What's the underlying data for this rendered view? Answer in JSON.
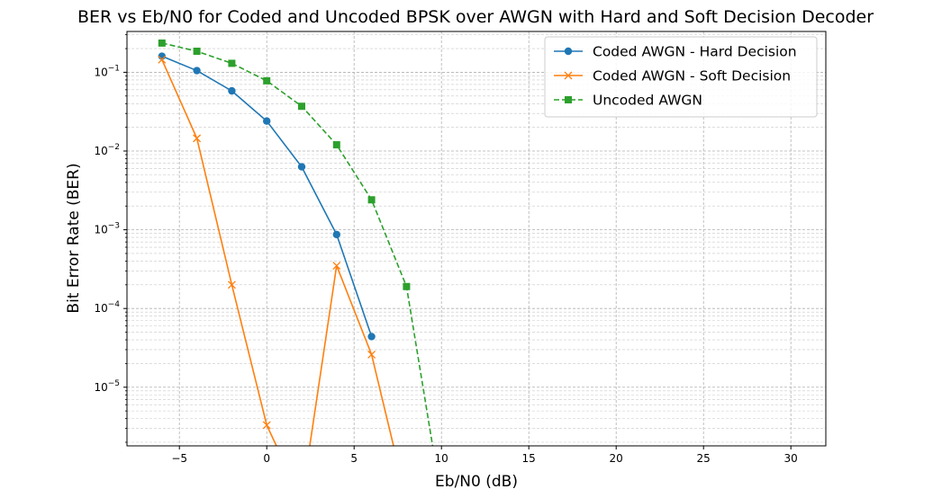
{
  "chart_data": {
    "type": "line",
    "title": "BER vs Eb/N0 for Coded and Uncoded BPSK over AWGN with Hard and Soft Decision Decoder",
    "xlabel": "Eb/N0 (dB)",
    "ylabel": "Bit Error Rate (BER)",
    "xscale": "linear",
    "yscale": "log",
    "xlim": [
      -8,
      32
    ],
    "ylim": [
      1.8e-06,
      0.33
    ],
    "grid": "major and minor",
    "legend_position": "top-right",
    "x_ticks": [
      {
        "value": -5,
        "label": "−5"
      },
      {
        "value": 0,
        "label": "0"
      },
      {
        "value": 5,
        "label": "5"
      },
      {
        "value": 10,
        "label": "10"
      },
      {
        "value": 15,
        "label": "15"
      },
      {
        "value": 20,
        "label": "20"
      },
      {
        "value": 25,
        "label": "25"
      },
      {
        "value": 30,
        "label": "30"
      }
    ],
    "y_ticks": [
      {
        "value": 0.1,
        "base": "10",
        "exp": "−1"
      },
      {
        "value": 0.01,
        "base": "10",
        "exp": "−2"
      },
      {
        "value": 0.001,
        "base": "10",
        "exp": "−3"
      },
      {
        "value": 0.0001,
        "base": "10",
        "exp": "−4"
      },
      {
        "value": 1e-05,
        "base": "10",
        "exp": "−5"
      }
    ],
    "series": [
      {
        "name": "Coded AWGN - Hard Decision",
        "color": "#1f77b4",
        "marker": "circle",
        "linestyle": "solid",
        "x": [
          -6,
          -4,
          -2,
          0,
          2,
          4,
          6
        ],
        "y": [
          0.16,
          0.105,
          0.058,
          0.024,
          0.0063,
          0.00087,
          4.4e-05
        ]
      },
      {
        "name": "Coded AWGN - Soft Decision",
        "color": "#ff7f0e",
        "marker": "x",
        "linestyle": "solid",
        "x": [
          -6,
          -4,
          -2,
          0,
          2,
          4,
          6,
          8
        ],
        "y": [
          0.145,
          0.0145,
          0.0002,
          3.3e-06,
          0,
          0.00035,
          2.6e-05,
          0
        ]
      },
      {
        "name": "Uncoded AWGN",
        "color": "#2ca02c",
        "marker": "square",
        "linestyle": "dashed",
        "x": [
          -6,
          -4,
          -2,
          0,
          2,
          4,
          6,
          8,
          10
        ],
        "y": [
          0.235,
          0.185,
          0.13,
          0.078,
          0.037,
          0.012,
          0.0024,
          0.00019,
          0
        ]
      }
    ]
  }
}
